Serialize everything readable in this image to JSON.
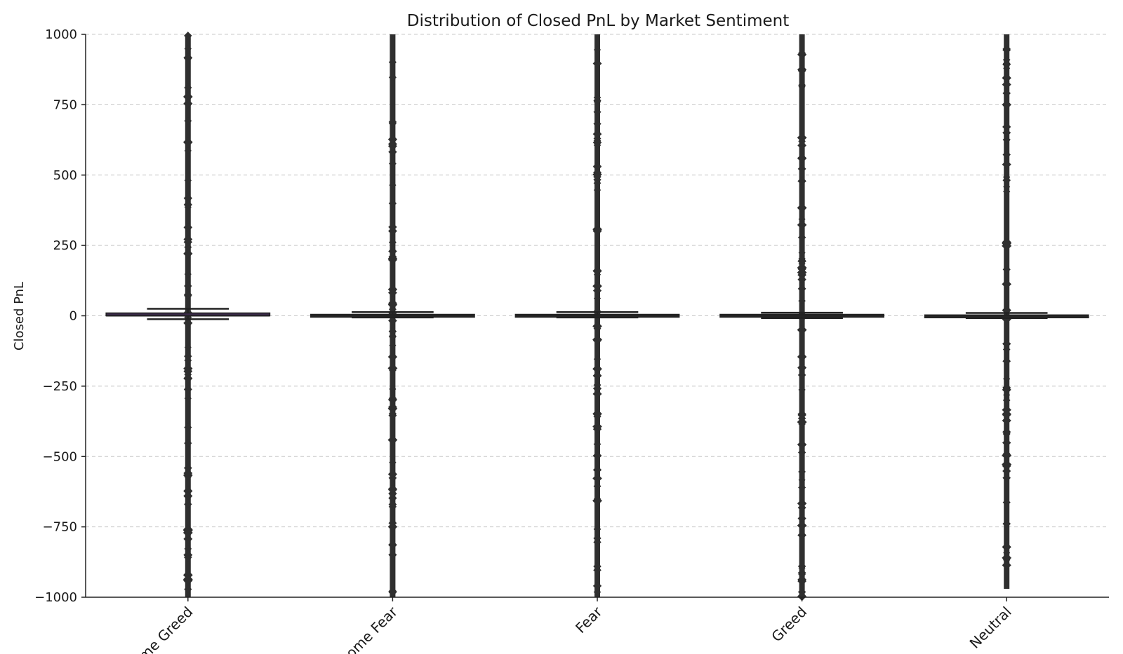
{
  "chart_data": {
    "type": "box",
    "title": "Distribution of Closed PnL by Market Sentiment",
    "xlabel": "",
    "ylabel": "Closed PnL",
    "ylim": [
      -1000,
      1000
    ],
    "yticks": [
      -1000,
      -750,
      -500,
      -250,
      0,
      250,
      500,
      750,
      1000
    ],
    "ytick_labels": [
      "−1000",
      "−750",
      "−500",
      "−250",
      "0",
      "250",
      "500",
      "750",
      "1000"
    ],
    "grid": true,
    "categories": [
      "Extreme Greed",
      "Extreme Fear",
      "Fear",
      "Greed",
      "Neutral"
    ],
    "category_labels_visible": [
      "me Greed",
      "ome Fear",
      "Fear",
      "Greed",
      "Neutral"
    ],
    "boxes": [
      {
        "category": "Extreme Greed",
        "whisker_low": -12,
        "q1": 0,
        "median": 0,
        "q3": 10,
        "whisker_high": 25,
        "outlier_range": [
          -1000,
          1000
        ],
        "color": "#3b2a4a"
      },
      {
        "category": "Extreme Fear",
        "whisker_low": -6,
        "q1": 0,
        "median": 0,
        "q3": 5,
        "whisker_high": 13,
        "outlier_range": [
          -1000,
          1000
        ],
        "color": "#2b2b2b"
      },
      {
        "category": "Fear",
        "whisker_low": -6,
        "q1": 0,
        "median": 0,
        "q3": 5,
        "whisker_high": 13,
        "outlier_range": [
          -1000,
          1000
        ],
        "color": "#2b2b2b"
      },
      {
        "category": "Greed",
        "whisker_low": -8,
        "q1": 0,
        "median": 0,
        "q3": 5,
        "whisker_high": 11,
        "outlier_range": [
          -1000,
          1000
        ],
        "color": "#2b2b2b"
      },
      {
        "category": "Neutral",
        "whisker_low": -8,
        "q1": -3,
        "median": 0,
        "q3": 3,
        "whisker_high": 10,
        "outlier_range": [
          -970,
          1000
        ],
        "color": "#2b2b2b"
      }
    ],
    "outlier_color": "#2f2f2f"
  }
}
